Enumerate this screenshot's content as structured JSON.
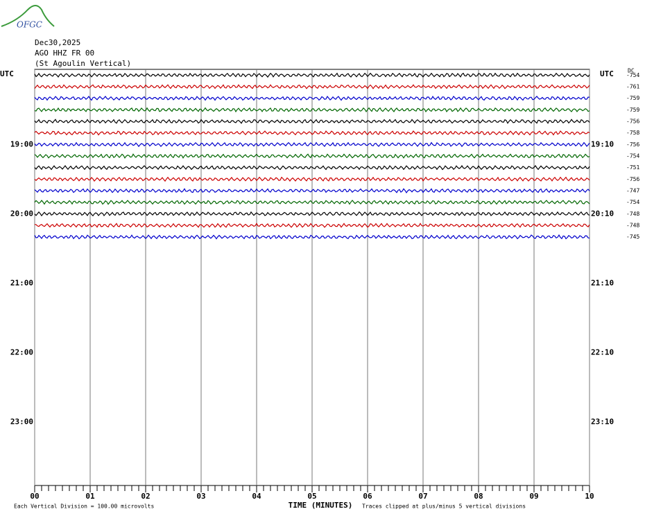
{
  "logo": "OFGC",
  "chart_data": {
    "type": "helicorder",
    "title_lines": [
      "Dec30,2025",
      "AGO HHZ FR 00",
      "(St Agoulin Vertical)"
    ],
    "left_axis_label": "UTC",
    "right_axis_label": "UTC",
    "dc_label": "DC",
    "xlabel": "TIME (MINUTES)",
    "xlim": [
      0,
      10
    ],
    "xticks": [
      {
        "value": 0,
        "label": "00"
      },
      {
        "value": 1,
        "label": "01"
      },
      {
        "value": 2,
        "label": "02"
      },
      {
        "value": 3,
        "label": "03"
      },
      {
        "value": 4,
        "label": "04"
      },
      {
        "value": 5,
        "label": "05"
      },
      {
        "value": 6,
        "label": "06"
      },
      {
        "value": 7,
        "label": "07"
      },
      {
        "value": 8,
        "label": "08"
      },
      {
        "value": 9,
        "label": "09"
      },
      {
        "value": 10,
        "label": "10"
      }
    ],
    "categories": [
      null,
      null,
      null,
      null,
      null,
      null,
      "19:00",
      null,
      null,
      null,
      null,
      null,
      "20:00",
      null,
      null,
      null,
      null,
      null,
      "21:00",
      null,
      null,
      null,
      null,
      null,
      "22:00",
      null,
      null,
      null,
      null,
      null,
      "23:00",
      null,
      null,
      null,
      null,
      null
    ],
    "categories_right": [
      null,
      null,
      null,
      null,
      null,
      null,
      "19:10",
      null,
      null,
      null,
      null,
      null,
      "20:10",
      null,
      null,
      null,
      null,
      null,
      "21:10",
      null,
      null,
      null,
      null,
      null,
      "22:10",
      null,
      null,
      null,
      null,
      null,
      "23:10",
      null,
      null,
      null,
      null,
      null
    ],
    "dc_offsets": [
      -754,
      -761,
      -759,
      -759,
      -756,
      -758,
      -756,
      -754,
      -751,
      -756,
      -747,
      -754,
      -748,
      -748,
      -745
    ],
    "trace_colors": [
      "#000000",
      "#cc0000",
      "#0000cc",
      "#006600"
    ],
    "grid": true,
    "footnotes": [
      "Each Vertical Division =  100.00 microvolts",
      "Traces clipped at plus/minus 5 vertical divisions"
    ]
  }
}
